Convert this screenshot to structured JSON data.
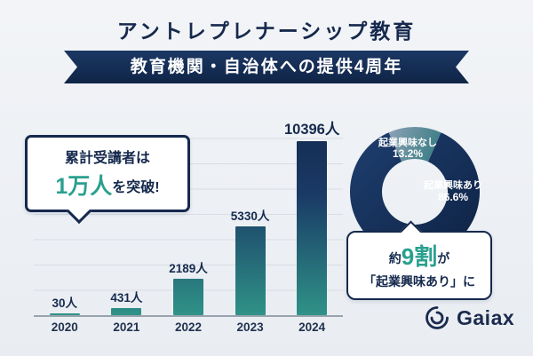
{
  "page": {
    "title": "アントレプレナーシップ教育",
    "ribbon": "教育機関・自治体への提供4周年"
  },
  "bubble": {
    "line1": "累計受講者は",
    "highlight": "1万人",
    "suffix": "を突破!"
  },
  "chart_data": [
    {
      "type": "bar",
      "categories": [
        "2020",
        "2021",
        "2022",
        "2023",
        "2024"
      ],
      "values": [
        30,
        431,
        2189,
        5330,
        10396
      ],
      "unit": "人",
      "title": "",
      "xlabel": "",
      "ylabel": "",
      "ylim": [
        0,
        12000
      ],
      "grid": true
    },
    {
      "type": "pie",
      "labels": [
        "起業興味あり",
        "起業興味なし"
      ],
      "values": [
        86.6,
        13.2
      ],
      "value_labels": [
        "86.6%",
        "13.2%"
      ],
      "annotation": "約9割が「起業興味あり」に",
      "colors": [
        "#13294e",
        "#7f96ab"
      ]
    }
  ],
  "donut": {
    "label_no": "起業興味なし",
    "pct_no": "13.2%",
    "label_yes": "起業興味あり",
    "pct_yes": "86.6%"
  },
  "callout": {
    "prefix": "約",
    "highlight": "9割",
    "mid": "が",
    "line2": "「起業興味あり」に"
  },
  "logo": {
    "text": "Gaiax"
  },
  "colors": {
    "navy": "#13294e",
    "teal": "#2aa08f",
    "bar_bottom": "#2f9287",
    "grid": "#d8dde4",
    "background": "#eef1f5"
  }
}
